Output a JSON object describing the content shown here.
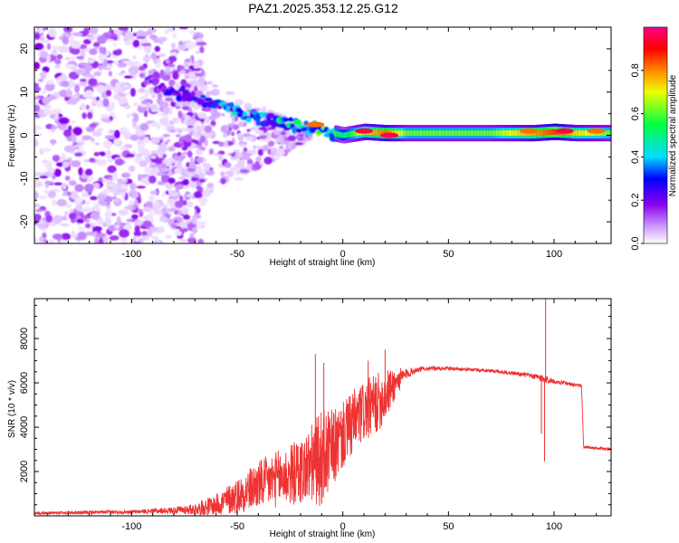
{
  "title": "PAZ1.2025.353.12.25.G12",
  "chart_data": [
    {
      "type": "heatmap",
      "name": "spectrogram",
      "xlabel": "Height of straight line (km)",
      "ylabel": "Frequency (Hz)",
      "xlim": [
        -146,
        127
      ],
      "ylim": [
        -25,
        25
      ],
      "xticks": [
        -100,
        -50,
        0,
        50,
        100
      ],
      "xtick_labels": [
        "-100",
        "-50",
        "0",
        "50",
        "100"
      ],
      "yticks": [
        -20,
        -10,
        0,
        10,
        20
      ],
      "ytick_labels": [
        "-20",
        "-10",
        "0",
        "10",
        "20"
      ],
      "colorbar": {
        "label": "Normalized spectral amplitude",
        "range": [
          0,
          1
        ],
        "ticks": [
          0.0,
          0.2,
          0.4,
          0.6,
          0.8
        ],
        "tick_labels": [
          "0.0",
          "0.2",
          "0.4",
          "0.6",
          "0.8"
        ],
        "colors": [
          "#ffffff",
          "#cc99ff",
          "#8800ee",
          "#0000ff",
          "#00ddff",
          "#00ff44",
          "#eeff00",
          "#ff8800",
          "#ff0000",
          "#ff0088"
        ]
      },
      "ridge": {
        "height_km": [
          -95,
          -80,
          -70,
          -60,
          -50,
          -40,
          -30,
          -20,
          -10,
          -5,
          0,
          10,
          20,
          30,
          50,
          70,
          90,
          100,
          110,
          127
        ],
        "frequency_hz": [
          13,
          10,
          9,
          7,
          5.5,
          4,
          3,
          2,
          1.2,
          0.5,
          0,
          0.8,
          0.5,
          0.5,
          0.5,
          0.5,
          0.5,
          0.8,
          0.5,
          0.5
        ],
        "amplitude": [
          0.3,
          0.35,
          0.4,
          0.45,
          0.5,
          0.5,
          0.55,
          0.6,
          0.65,
          0.6,
          0.5,
          0.7,
          0.8,
          0.6,
          0.6,
          0.6,
          0.75,
          0.85,
          0.7,
          0.6
        ]
      },
      "hot_spots": [
        {
          "height_km": 10,
          "frequency_hz": 1,
          "amplitude": 0.95
        },
        {
          "height_km": 22,
          "frequency_hz": 0,
          "amplitude": 0.95
        },
        {
          "height_km": -13,
          "frequency_hz": 2.5,
          "amplitude": 0.8
        },
        {
          "height_km": 88,
          "frequency_hz": 1,
          "amplitude": 0.8
        },
        {
          "height_km": 105,
          "frequency_hz": 1,
          "amplitude": 0.95
        },
        {
          "height_km": 120,
          "frequency_hz": 1,
          "amplitude": 0.8
        }
      ]
    },
    {
      "type": "line",
      "name": "snr",
      "xlabel": "Height of straight line (km)",
      "ylabel": "SNR (10 * v/v)",
      "xlim": [
        -146,
        127
      ],
      "ylim": [
        0,
        9800
      ],
      "xticks": [
        -100,
        -50,
        0,
        50,
        100
      ],
      "xtick_labels": [
        "-100",
        "-50",
        "0",
        "50",
        "100"
      ],
      "yticks": [
        2000,
        4000,
        6000,
        8000
      ],
      "ytick_labels": [
        "2000",
        "4000",
        "6000",
        "8000"
      ],
      "color": "#ee3333",
      "envelope": {
        "height_km": [
          -146,
          -100,
          -80,
          -70,
          -60,
          -50,
          -40,
          -30,
          -20,
          -15,
          -10,
          -5,
          0,
          5,
          10,
          15,
          20,
          25,
          30,
          35,
          40,
          50,
          60,
          70,
          80,
          90,
          95,
          100,
          105,
          110,
          113,
          114,
          120,
          127
        ],
        "snr": [
          120,
          180,
          250,
          300,
          500,
          900,
          1400,
          1700,
          2000,
          2300,
          2600,
          3000,
          3600,
          4200,
          4700,
          5000,
          5400,
          6000,
          6400,
          6600,
          6650,
          6650,
          6600,
          6550,
          6450,
          6300,
          6200,
          6050,
          6000,
          5900,
          5850,
          3100,
          3050,
          3000
        ]
      },
      "noise": {
        "height_km": [
          -146,
          -100,
          -80,
          -70,
          -60,
          -50,
          -40,
          -30,
          -20,
          -15,
          -10,
          -5,
          0,
          5,
          10,
          15,
          20,
          25,
          30,
          35,
          40,
          50,
          60,
          70,
          80,
          90,
          95,
          100,
          105,
          110,
          113,
          114,
          120,
          127
        ],
        "amplitude": [
          60,
          80,
          150,
          250,
          500,
          800,
          1100,
          1300,
          1500,
          1800,
          2200,
          1800,
          1500,
          1500,
          1400,
          1400,
          1200,
          700,
          250,
          120,
          90,
          80,
          80,
          80,
          90,
          120,
          200,
          100,
          80,
          80,
          80,
          60,
          60,
          60
        ]
      },
      "spikes": [
        {
          "height_km": -13,
          "snr": 7300
        },
        {
          "height_km": -9,
          "snr": 6900
        },
        {
          "height_km": 12,
          "snr": 7000
        },
        {
          "height_km": 20,
          "snr": 7500
        },
        {
          "height_km": 96,
          "snr": 9800
        },
        {
          "height_km": 95.5,
          "snr": 2450
        },
        {
          "height_km": 94,
          "snr": 3700
        }
      ]
    }
  ]
}
